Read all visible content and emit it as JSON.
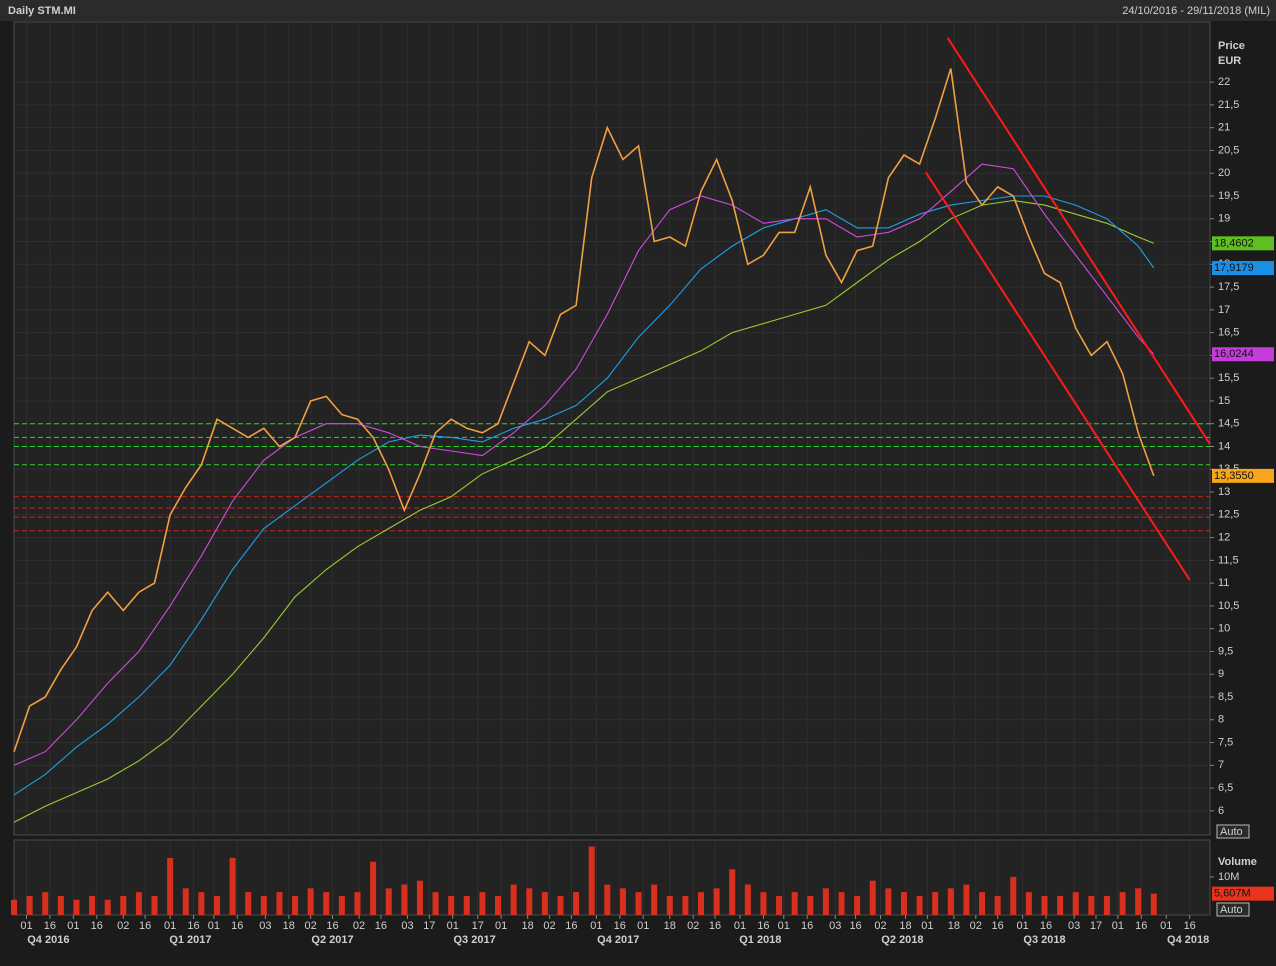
{
  "header": {
    "title": "Daily STM.MI",
    "range": "24/10/2016 - 29/11/2018 (MIL)"
  },
  "chart_data": [
    {
      "type": "line",
      "y_label": "Price",
      "y_unit": "EUR",
      "scale_button": "Auto",
      "grid": true,
      "xlim": [
        "2016-10-24",
        "2018-11-29"
      ],
      "ylim": [
        5.47,
        23.32
      ],
      "yticks": [
        6,
        {
          "value": 6.5,
          "label": "6,5"
        },
        7,
        {
          "value": 7.5,
          "label": "7,5"
        },
        8,
        {
          "value": 8.5,
          "label": "8,5"
        },
        9,
        {
          "value": 9.5,
          "label": "9,5"
        },
        10,
        {
          "value": 10.5,
          "label": "10,5"
        },
        11,
        {
          "value": 11.5,
          "label": "11,5"
        },
        12,
        {
          "value": 12.5,
          "label": "12,5"
        },
        13,
        {
          "value": 13.5,
          "label": "13,5"
        },
        14,
        {
          "value": 14.5,
          "label": "14,5"
        },
        15,
        {
          "value": 15.5,
          "label": "15,5"
        },
        16,
        {
          "value": 16.5,
          "label": "16,5"
        },
        17,
        {
          "value": 17.5,
          "label": "17,5"
        },
        18,
        {
          "value": 18.5,
          "label": "18,5"
        },
        19,
        {
          "value": 19.5,
          "label": "19,5"
        },
        20,
        {
          "value": 20.5,
          "label": "20,5"
        },
        21,
        {
          "value": 21.5,
          "label": "21,5"
        },
        22
      ],
      "xticks": [
        {
          "value": "2016-11-01",
          "label": "01"
        },
        {
          "value": "2016-11-16",
          "label": "16"
        },
        {
          "value": "2016-12-01",
          "label": "01"
        },
        {
          "value": "2016-12-16",
          "label": "16"
        },
        {
          "value": "2017-01-02",
          "label": "02"
        },
        {
          "value": "2017-01-16",
          "label": "16"
        },
        {
          "value": "2017-02-01",
          "label": "01"
        },
        {
          "value": "2017-02-16",
          "label": "16"
        },
        {
          "value": "2017-03-01",
          "label": "01"
        },
        {
          "value": "2017-03-16",
          "label": "16"
        },
        {
          "value": "2017-04-03",
          "label": "03"
        },
        {
          "value": "2017-04-18",
          "label": "18"
        },
        {
          "value": "2017-05-02",
          "label": "02"
        },
        {
          "value": "2017-05-16",
          "label": "16"
        },
        {
          "value": "2017-06-02",
          "label": "02"
        },
        {
          "value": "2017-06-16",
          "label": "16"
        },
        {
          "value": "2017-07-03",
          "label": "03"
        },
        {
          "value": "2017-07-17",
          "label": "17"
        },
        {
          "value": "2017-08-01",
          "label": "01"
        },
        {
          "value": "2017-08-17",
          "label": "17"
        },
        {
          "value": "2017-09-01",
          "label": "01"
        },
        {
          "value": "2017-09-18",
          "label": "18"
        },
        {
          "value": "2017-10-02",
          "label": "02"
        },
        {
          "value": "2017-10-16",
          "label": "16"
        },
        {
          "value": "2017-11-01",
          "label": "01"
        },
        {
          "value": "2017-11-16",
          "label": "16"
        },
        {
          "value": "2017-12-01",
          "label": "01"
        },
        {
          "value": "2017-12-18",
          "label": "18"
        },
        {
          "value": "2018-01-02",
          "label": "02"
        },
        {
          "value": "2018-01-16",
          "label": "16"
        },
        {
          "value": "2018-02-01",
          "label": "01"
        },
        {
          "value": "2018-02-16",
          "label": "16"
        },
        {
          "value": "2018-03-01",
          "label": "01"
        },
        {
          "value": "2018-03-16",
          "label": "16"
        },
        {
          "value": "2018-04-03",
          "label": "03"
        },
        {
          "value": "2018-04-16",
          "label": "16"
        },
        {
          "value": "2018-05-02",
          "label": "02"
        },
        {
          "value": "2018-05-18",
          "label": "18"
        },
        {
          "value": "2018-06-01",
          "label": "01"
        },
        {
          "value": "2018-06-18",
          "label": "18"
        },
        {
          "value": "2018-07-02",
          "label": "02"
        },
        {
          "value": "2018-07-16",
          "label": "16"
        },
        {
          "value": "2018-08-01",
          "label": "01"
        },
        {
          "value": "2018-08-16",
          "label": "16"
        },
        {
          "value": "2018-09-03",
          "label": "03"
        },
        {
          "value": "2018-09-17",
          "label": "17"
        },
        {
          "value": "2018-10-01",
          "label": "01"
        },
        {
          "value": "2018-10-16",
          "label": "16"
        },
        {
          "value": "2018-11-01",
          "label": "01"
        },
        {
          "value": "2018-11-16",
          "label": "16"
        }
      ],
      "quarter_labels": [
        {
          "value": "2016-11-15",
          "label": "Q4 2016"
        },
        {
          "value": "2017-02-14",
          "label": "Q1 2017"
        },
        {
          "value": "2017-05-16",
          "label": "Q2 2017"
        },
        {
          "value": "2017-08-15",
          "label": "Q3 2017"
        },
        {
          "value": "2017-11-15",
          "label": "Q4 2017"
        },
        {
          "value": "2018-02-14",
          "label": "Q1 2018"
        },
        {
          "value": "2018-05-16",
          "label": "Q2 2018"
        },
        {
          "value": "2018-08-15",
          "label": "Q3 2018"
        },
        {
          "value": "2018-11-15",
          "label": "Q4 2018"
        }
      ],
      "hlines": [
        {
          "value": 14.5,
          "color": "#2fd12f"
        },
        {
          "value": 14.2,
          "color": "#2fd12f"
        },
        {
          "value": 14.0,
          "color": "#2fd12f"
        },
        {
          "value": 13.6,
          "color": "#2fd12f"
        },
        {
          "value": 12.9,
          "color": "#c0281c"
        },
        {
          "value": 12.65,
          "color": "#c0281c"
        },
        {
          "value": 12.45,
          "color": "#c0281c"
        },
        {
          "value": 12.15,
          "color": "#c0281c"
        }
      ],
      "trendlines": [
        {
          "x": [
            "2018-06-14",
            "2018-11-29"
          ],
          "values": [
            22.97,
            14.05
          ],
          "color": "#ff1a1a"
        },
        {
          "x": [
            "2018-05-31",
            "2018-11-16"
          ],
          "values": [
            20.02,
            11.07
          ],
          "color": "#ff1a1a"
        }
      ],
      "series": [
        {
          "color": "#9acd32",
          "tag_color": "#5fbf1f",
          "last_label": "18,4602",
          "x": [
            "2016-10-24",
            "2016-11-13",
            "2016-12-03",
            "2016-12-23",
            "2017-01-12",
            "2017-02-01",
            "2017-02-21",
            "2017-03-13",
            "2017-04-02",
            "2017-04-22",
            "2017-05-12",
            "2017-06-01",
            "2017-06-21",
            "2017-07-11",
            "2017-07-31",
            "2017-08-20",
            "2017-09-09",
            "2017-09-29",
            "2017-10-19",
            "2017-11-08",
            "2017-11-28",
            "2017-12-18",
            "2018-01-07",
            "2018-01-27",
            "2018-02-16",
            "2018-03-08",
            "2018-03-28",
            "2018-04-17",
            "2018-05-07",
            "2018-05-27",
            "2018-06-16",
            "2018-07-06",
            "2018-07-26",
            "2018-08-15",
            "2018-09-04",
            "2018-09-24",
            "2018-10-14",
            "2018-10-24"
          ],
          "values": [
            5.75,
            6.1,
            6.4,
            6.7,
            7.1,
            7.6,
            8.3,
            9.0,
            9.8,
            10.7,
            11.3,
            11.8,
            12.2,
            12.6,
            12.9,
            13.4,
            13.7,
            14.0,
            14.6,
            15.2,
            15.5,
            15.8,
            16.1,
            16.5,
            16.7,
            16.9,
            17.1,
            17.6,
            18.1,
            18.5,
            19.0,
            19.3,
            19.4,
            19.3,
            19.1,
            18.9,
            18.6,
            18.4602
          ]
        },
        {
          "color": "#1e9fe8",
          "tag_color": "#1a8fe6",
          "last_label": "17,9179",
          "x": [
            "2016-10-24",
            "2016-11-13",
            "2016-12-03",
            "2016-12-23",
            "2017-01-12",
            "2017-02-01",
            "2017-02-21",
            "2017-03-13",
            "2017-04-02",
            "2017-04-22",
            "2017-05-12",
            "2017-06-01",
            "2017-06-21",
            "2017-07-11",
            "2017-07-31",
            "2017-08-20",
            "2017-09-09",
            "2017-09-29",
            "2017-10-19",
            "2017-11-08",
            "2017-11-28",
            "2017-12-18",
            "2018-01-07",
            "2018-01-27",
            "2018-02-16",
            "2018-03-08",
            "2018-03-28",
            "2018-04-17",
            "2018-05-07",
            "2018-05-27",
            "2018-06-16",
            "2018-07-06",
            "2018-07-26",
            "2018-08-15",
            "2018-09-04",
            "2018-09-24",
            "2018-10-14",
            "2018-10-24"
          ],
          "values": [
            6.35,
            6.8,
            7.4,
            7.9,
            8.5,
            9.2,
            10.2,
            11.3,
            12.2,
            12.7,
            13.2,
            13.7,
            14.1,
            14.25,
            14.2,
            14.1,
            14.4,
            14.6,
            14.9,
            15.5,
            16.4,
            17.1,
            17.9,
            18.4,
            18.8,
            19.0,
            19.2,
            18.8,
            18.8,
            19.1,
            19.3,
            19.4,
            19.5,
            19.5,
            19.3,
            19.0,
            18.4,
            17.9179
          ]
        },
        {
          "color": "#d24be0",
          "tag_color": "#c43ddb",
          "last_label": "16,0244",
          "x": [
            "2016-10-24",
            "2016-11-13",
            "2016-12-03",
            "2016-12-23",
            "2017-01-12",
            "2017-02-01",
            "2017-02-21",
            "2017-03-13",
            "2017-04-02",
            "2017-04-22",
            "2017-05-12",
            "2017-06-01",
            "2017-06-21",
            "2017-07-11",
            "2017-07-31",
            "2017-08-20",
            "2017-09-09",
            "2017-09-29",
            "2017-10-19",
            "2017-11-08",
            "2017-11-28",
            "2017-12-18",
            "2018-01-07",
            "2018-01-27",
            "2018-02-16",
            "2018-03-08",
            "2018-03-28",
            "2018-04-17",
            "2018-05-07",
            "2018-05-27",
            "2018-06-16",
            "2018-07-06",
            "2018-07-26",
            "2018-08-15",
            "2018-09-04",
            "2018-09-24",
            "2018-10-14",
            "2018-10-24"
          ],
          "values": [
            7.0,
            7.3,
            8.0,
            8.8,
            9.5,
            10.5,
            11.6,
            12.8,
            13.7,
            14.2,
            14.5,
            14.5,
            14.3,
            14.0,
            13.9,
            13.8,
            14.3,
            14.9,
            15.7,
            16.9,
            18.3,
            19.2,
            19.5,
            19.3,
            18.9,
            19.0,
            19.0,
            18.6,
            18.7,
            19.0,
            19.6,
            20.2,
            20.1,
            19.1,
            18.2,
            17.3,
            16.4,
            16.0244
          ]
        },
        {
          "color": "#f0a040",
          "tag_color": "#f7a51c",
          "last_label": "13,3550",
          "x": [
            "2016-10-24",
            "2016-11-03",
            "2016-11-13",
            "2016-11-23",
            "2016-12-03",
            "2016-12-13",
            "2016-12-23",
            "2017-01-02",
            "2017-01-12",
            "2017-01-22",
            "2017-02-01",
            "2017-02-11",
            "2017-02-21",
            "2017-03-03",
            "2017-03-13",
            "2017-03-23",
            "2017-04-02",
            "2017-04-12",
            "2017-04-22",
            "2017-05-02",
            "2017-05-12",
            "2017-05-22",
            "2017-06-01",
            "2017-06-11",
            "2017-06-21",
            "2017-07-01",
            "2017-07-11",
            "2017-07-21",
            "2017-07-31",
            "2017-08-10",
            "2017-08-20",
            "2017-08-30",
            "2017-09-09",
            "2017-09-19",
            "2017-09-29",
            "2017-10-09",
            "2017-10-19",
            "2017-10-29",
            "2017-11-08",
            "2017-11-18",
            "2017-11-28",
            "2017-12-08",
            "2017-12-18",
            "2017-12-28",
            "2018-01-07",
            "2018-01-17",
            "2018-01-27",
            "2018-02-06",
            "2018-02-16",
            "2018-02-26",
            "2018-03-08",
            "2018-03-18",
            "2018-03-28",
            "2018-04-07",
            "2018-04-17",
            "2018-04-27",
            "2018-05-07",
            "2018-05-17",
            "2018-05-27",
            "2018-06-06",
            "2018-06-16",
            "2018-06-26",
            "2018-07-06",
            "2018-07-16",
            "2018-07-26",
            "2018-08-05",
            "2018-08-15",
            "2018-08-25",
            "2018-09-04",
            "2018-09-14",
            "2018-09-24",
            "2018-10-04",
            "2018-10-14",
            "2018-10-24"
          ],
          "values": [
            7.3,
            8.3,
            8.5,
            9.1,
            9.6,
            10.4,
            10.8,
            10.4,
            10.8,
            11.0,
            12.5,
            13.1,
            13.6,
            14.6,
            14.4,
            14.2,
            14.4,
            14.0,
            14.2,
            15.0,
            15.1,
            14.7,
            14.6,
            14.2,
            13.5,
            12.6,
            13.4,
            14.3,
            14.6,
            14.4,
            14.3,
            14.5,
            15.4,
            16.3,
            16.0,
            16.9,
            17.1,
            19.9,
            21.0,
            20.3,
            20.6,
            18.5,
            18.6,
            18.4,
            19.6,
            20.3,
            19.4,
            18.0,
            18.2,
            18.7,
            18.7,
            19.7,
            18.2,
            17.6,
            18.3,
            18.4,
            19.9,
            20.4,
            20.2,
            21.2,
            22.3,
            19.8,
            19.3,
            19.7,
            19.5,
            18.6,
            17.8,
            17.6,
            16.6,
            16.0,
            16.3,
            15.6,
            14.3,
            13.355
          ]
        }
      ]
    },
    {
      "type": "bar",
      "title": "Volume",
      "scale_button": "Auto",
      "color": "#d8301c",
      "tag_color": "#e8341c",
      "last_label": "5,607M",
      "ylim": [
        0,
        19.7
      ],
      "yticks": [
        {
          "value": 10,
          "label": "10M"
        }
      ],
      "x": [
        "2016-10-24",
        "2016-11-03",
        "2016-11-13",
        "2016-11-23",
        "2016-12-03",
        "2016-12-13",
        "2016-12-23",
        "2017-01-02",
        "2017-01-12",
        "2017-01-22",
        "2017-02-01",
        "2017-02-11",
        "2017-02-21",
        "2017-03-03",
        "2017-03-13",
        "2017-03-23",
        "2017-04-02",
        "2017-04-12",
        "2017-04-22",
        "2017-05-02",
        "2017-05-12",
        "2017-05-22",
        "2017-06-01",
        "2017-06-11",
        "2017-06-21",
        "2017-07-01",
        "2017-07-11",
        "2017-07-21",
        "2017-07-31",
        "2017-08-10",
        "2017-08-20",
        "2017-08-30",
        "2017-09-09",
        "2017-09-19",
        "2017-09-29",
        "2017-10-09",
        "2017-10-19",
        "2017-10-29",
        "2017-11-08",
        "2017-11-18",
        "2017-11-28",
        "2017-12-08",
        "2017-12-18",
        "2017-12-28",
        "2018-01-07",
        "2018-01-17",
        "2018-01-27",
        "2018-02-06",
        "2018-02-16",
        "2018-02-26",
        "2018-03-08",
        "2018-03-18",
        "2018-03-28",
        "2018-04-07",
        "2018-04-17",
        "2018-04-27",
        "2018-05-07",
        "2018-05-17",
        "2018-05-27",
        "2018-06-06",
        "2018-06-16",
        "2018-06-26",
        "2018-07-06",
        "2018-07-16",
        "2018-07-26",
        "2018-08-05",
        "2018-08-15",
        "2018-08-25",
        "2018-09-04",
        "2018-09-14",
        "2018-09-24",
        "2018-10-04",
        "2018-10-14",
        "2018-10-24"
      ],
      "values": [
        4,
        5,
        6,
        5,
        4,
        5,
        4,
        5,
        6,
        5,
        15,
        7,
        6,
        5,
        15,
        6,
        5,
        6,
        5,
        7,
        6,
        5,
        6,
        14,
        7,
        8,
        9,
        6,
        5,
        5,
        6,
        5,
        8,
        7,
        6,
        5,
        6,
        18,
        8,
        7,
        6,
        8,
        5,
        5,
        6,
        7,
        12,
        8,
        6,
        5,
        6,
        5,
        7,
        6,
        5,
        9,
        7,
        6,
        5,
        6,
        7,
        8,
        6,
        5,
        10,
        6,
        5,
        5,
        6,
        5,
        5,
        6,
        7,
        5.607
      ]
    }
  ]
}
